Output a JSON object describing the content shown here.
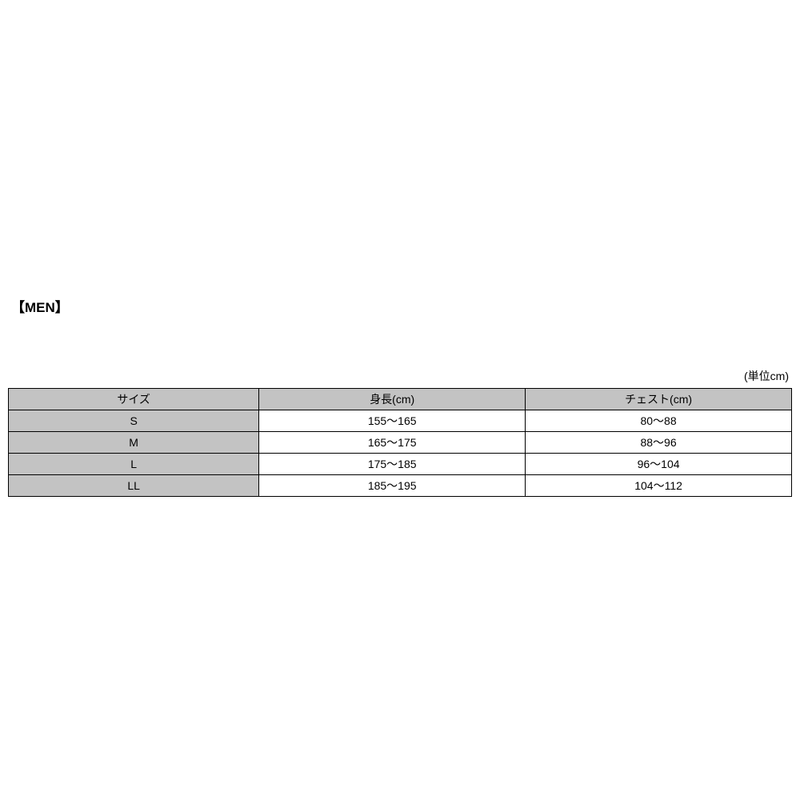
{
  "section": {
    "title": "【MEN】"
  },
  "unit_label": "(単位cm)",
  "table": {
    "header_bg_color": "#c3c3c3",
    "border_color": "#000000",
    "background_color": "#ffffff",
    "font_size": 14,
    "columns": [
      "サイズ",
      "身長(cm)",
      "チェスト(cm)"
    ],
    "rows": [
      {
        "size": "S",
        "height": "155～165",
        "chest": "80～88"
      },
      {
        "size": "M",
        "height": "165～175",
        "chest": "88～96"
      },
      {
        "size": "L",
        "height": "175～185",
        "chest": "96～104"
      },
      {
        "size": "LL",
        "height": "185～195",
        "chest": "104～112"
      }
    ]
  }
}
